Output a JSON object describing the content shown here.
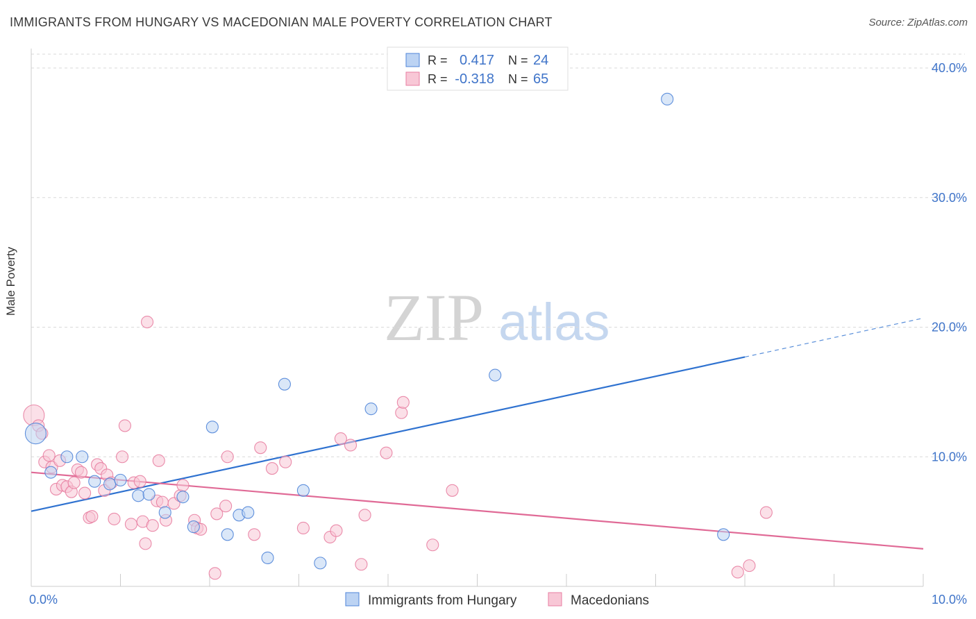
{
  "header": {
    "title": "IMMIGRANTS FROM HUNGARY VS MACEDONIAN MALE POVERTY CORRELATION CHART",
    "source": "Source: ZipAtlas.com"
  },
  "watermark": {
    "zip": "ZIP",
    "atlas": "atlas"
  },
  "colors": {
    "blue": "#4f84d8",
    "blue_fill": "#bcd3f3",
    "blue_line": "#2f72d0",
    "pink": "#e87ea1",
    "pink_fill": "#f8c7d6",
    "pink_line": "#e06a96",
    "tick_label": "#3f74c9",
    "grid": "#d9d9d9"
  },
  "legend": {
    "rows": [
      {
        "r_label": "R =",
        "r_value": "0.417",
        "n_label": "N =",
        "n_value": "24",
        "series": "blue"
      },
      {
        "r_label": "R =",
        "r_value": "-0.318",
        "n_label": "N =",
        "n_value": "65",
        "series": "pink"
      }
    ]
  },
  "chart_data": {
    "type": "scatter",
    "title": "IMMIGRANTS FROM HUNGARY VS MACEDONIAN MALE POVERTY CORRELATION CHART",
    "xlabel": "",
    "ylabel": "Male Poverty",
    "xlim": [
      0,
      10
    ],
    "ylim": [
      0,
      41.5
    ],
    "x_tick_labels": [
      {
        "value": 0,
        "label": "0.0%"
      },
      {
        "value": 10,
        "label": "10.0%"
      }
    ],
    "y_ticks": [
      {
        "value": 10,
        "label": "10.0%"
      },
      {
        "value": 20,
        "label": "20.0%"
      },
      {
        "value": 30,
        "label": "30.0%"
      },
      {
        "value": 40,
        "label": "40.0%"
      }
    ],
    "x_minor_ticks": [
      1,
      2,
      3,
      4,
      5,
      6,
      7,
      8,
      9,
      10
    ],
    "grid": true,
    "legend_position": "bottom-center",
    "series": [
      {
        "name": "Immigrants from Hungary",
        "color": "blue",
        "points": [
          {
            "x": 0.05,
            "y": 11.8,
            "big": true
          },
          {
            "x": 0.22,
            "y": 8.8
          },
          {
            "x": 0.4,
            "y": 10.0
          },
          {
            "x": 0.57,
            "y": 10.0
          },
          {
            "x": 0.71,
            "y": 8.1
          },
          {
            "x": 0.88,
            "y": 7.9
          },
          {
            "x": 1.0,
            "y": 8.2
          },
          {
            "x": 1.2,
            "y": 7.0
          },
          {
            "x": 1.32,
            "y": 7.1
          },
          {
            "x": 1.5,
            "y": 5.7
          },
          {
            "x": 1.7,
            "y": 6.9
          },
          {
            "x": 1.82,
            "y": 4.6
          },
          {
            "x": 2.03,
            "y": 12.3
          },
          {
            "x": 2.2,
            "y": 4.0
          },
          {
            "x": 2.33,
            "y": 5.5
          },
          {
            "x": 2.43,
            "y": 5.7
          },
          {
            "x": 2.65,
            "y": 2.2
          },
          {
            "x": 2.84,
            "y": 15.6
          },
          {
            "x": 3.05,
            "y": 7.4
          },
          {
            "x": 3.24,
            "y": 1.8
          },
          {
            "x": 3.81,
            "y": 13.7
          },
          {
            "x": 5.2,
            "y": 16.3
          },
          {
            "x": 7.13,
            "y": 37.6
          },
          {
            "x": 7.76,
            "y": 4.0
          }
        ],
        "trend": {
          "x0": 0,
          "y0": 5.8,
          "x1": 8.0,
          "y1": 17.7,
          "dashed_to_x": 10,
          "dashed_to_y": 20.7
        }
      },
      {
        "name": "Macedonians",
        "color": "pink",
        "points": [
          {
            "x": 0.03,
            "y": 13.2,
            "big": true
          },
          {
            "x": 0.08,
            "y": 12.4
          },
          {
            "x": 0.12,
            "y": 11.8
          },
          {
            "x": 0.15,
            "y": 9.6
          },
          {
            "x": 0.2,
            "y": 10.1
          },
          {
            "x": 0.23,
            "y": 9.2
          },
          {
            "x": 0.28,
            "y": 7.5
          },
          {
            "x": 0.32,
            "y": 9.7
          },
          {
            "x": 0.35,
            "y": 7.8
          },
          {
            "x": 0.4,
            "y": 7.7
          },
          {
            "x": 0.45,
            "y": 7.3
          },
          {
            "x": 0.48,
            "y": 8.0
          },
          {
            "x": 0.52,
            "y": 9.0
          },
          {
            "x": 0.56,
            "y": 8.8
          },
          {
            "x": 0.6,
            "y": 7.2
          },
          {
            "x": 0.65,
            "y": 5.3
          },
          {
            "x": 0.68,
            "y": 5.4
          },
          {
            "x": 0.74,
            "y": 9.4
          },
          {
            "x": 0.78,
            "y": 9.1
          },
          {
            "x": 0.82,
            "y": 7.4
          },
          {
            "x": 0.85,
            "y": 8.6
          },
          {
            "x": 0.9,
            "y": 8.0
          },
          {
            "x": 0.93,
            "y": 5.2
          },
          {
            "x": 1.02,
            "y": 10.0
          },
          {
            "x": 1.05,
            "y": 12.4
          },
          {
            "x": 1.12,
            "y": 4.8
          },
          {
            "x": 1.15,
            "y": 8.0
          },
          {
            "x": 1.22,
            "y": 8.1
          },
          {
            "x": 1.25,
            "y": 5.0
          },
          {
            "x": 1.28,
            "y": 3.3
          },
          {
            "x": 1.3,
            "y": 20.4
          },
          {
            "x": 1.36,
            "y": 4.7
          },
          {
            "x": 1.41,
            "y": 6.6
          },
          {
            "x": 1.43,
            "y": 9.7
          },
          {
            "x": 1.47,
            "y": 6.5
          },
          {
            "x": 1.51,
            "y": 5.1
          },
          {
            "x": 1.6,
            "y": 6.4
          },
          {
            "x": 1.67,
            "y": 7.0
          },
          {
            "x": 1.7,
            "y": 7.8
          },
          {
            "x": 1.83,
            "y": 5.1
          },
          {
            "x": 1.86,
            "y": 4.5
          },
          {
            "x": 1.9,
            "y": 4.4
          },
          {
            "x": 2.06,
            "y": 1.0
          },
          {
            "x": 2.08,
            "y": 5.6
          },
          {
            "x": 2.18,
            "y": 6.2
          },
          {
            "x": 2.2,
            "y": 10.0
          },
          {
            "x": 2.5,
            "y": 4.0
          },
          {
            "x": 2.57,
            "y": 10.7
          },
          {
            "x": 2.7,
            "y": 9.1
          },
          {
            "x": 2.85,
            "y": 9.6
          },
          {
            "x": 3.05,
            "y": 4.5
          },
          {
            "x": 3.35,
            "y": 3.8
          },
          {
            "x": 3.42,
            "y": 4.3
          },
          {
            "x": 3.47,
            "y": 11.4
          },
          {
            "x": 3.58,
            "y": 10.9
          },
          {
            "x": 3.7,
            "y": 1.7
          },
          {
            "x": 3.74,
            "y": 5.5
          },
          {
            "x": 3.98,
            "y": 10.3
          },
          {
            "x": 4.15,
            "y": 13.4
          },
          {
            "x": 4.17,
            "y": 14.2
          },
          {
            "x": 4.5,
            "y": 3.2
          },
          {
            "x": 4.72,
            "y": 7.4
          },
          {
            "x": 7.92,
            "y": 1.1
          },
          {
            "x": 8.05,
            "y": 1.6
          },
          {
            "x": 8.24,
            "y": 5.7
          }
        ],
        "trend": {
          "x0": 0,
          "y0": 8.8,
          "x1": 10,
          "y1": 2.9
        }
      }
    ]
  },
  "bottom_legend": [
    {
      "label": "Immigrants from Hungary",
      "series": "blue"
    },
    {
      "label": "Macedonians",
      "series": "pink"
    }
  ]
}
